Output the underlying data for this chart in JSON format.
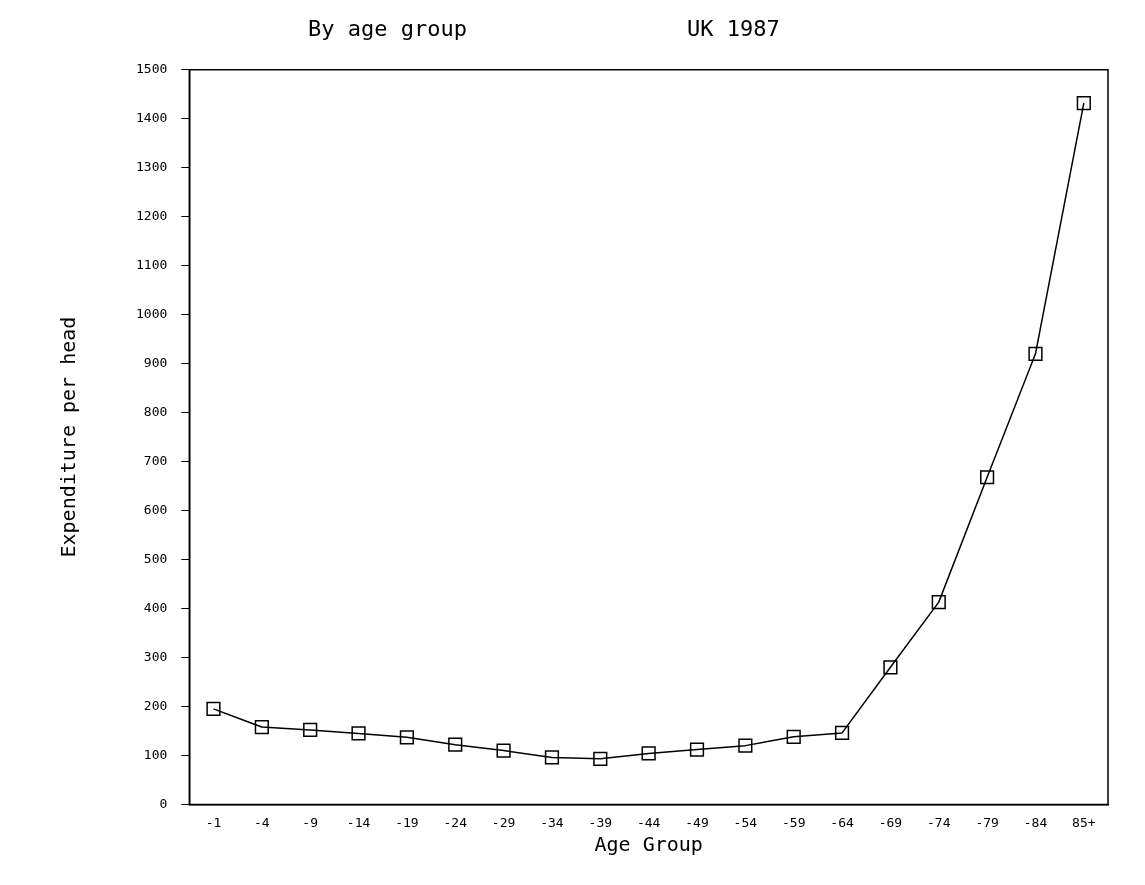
{
  "chart_data": {
    "type": "line",
    "title": "By age group",
    "subtitle": "UK 1987",
    "xlabel": "Age Group",
    "ylabel": "Expenditure per head",
    "categories": [
      "-1",
      "-4",
      "-9",
      "-14",
      "-19",
      "-24",
      "-29",
      "-34",
      "-39",
      "-44",
      "-49",
      "-54",
      "-59",
      "-64",
      "-69",
      "-74",
      "-79",
      "-84",
      "85+"
    ],
    "series": [
      {
        "color": "#000000",
        "values": [
          195,
          158,
          152,
          145,
          137,
          122,
          110,
          96,
          93,
          104,
          112,
          120,
          138,
          146,
          280,
          413,
          668,
          920,
          1432
        ]
      }
    ],
    "ylim": [
      0,
      1500
    ],
    "yticks": [
      0,
      100,
      200,
      300,
      400,
      500,
      600,
      700,
      800,
      900,
      1000,
      1100,
      1200,
      1300,
      1400,
      1500
    ],
    "grid": false,
    "legend": false,
    "marker": "square",
    "line_style": "solid"
  }
}
